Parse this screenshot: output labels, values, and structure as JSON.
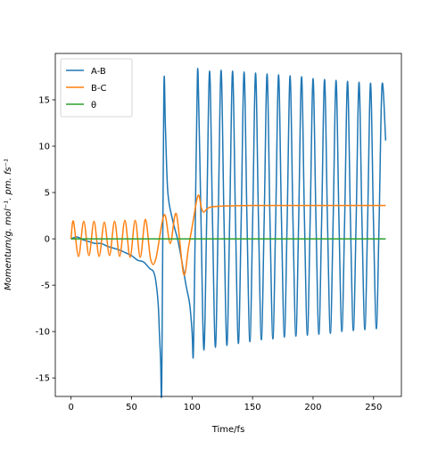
{
  "chart_data": {
    "type": "line",
    "xlabel": "Time/fs",
    "ylabel": "Momentum/g. mol⁻¹. pm. fs⁻¹",
    "xlim": [
      -13,
      273
    ],
    "ylim": [
      -17,
      20
    ],
    "xticks": [
      0,
      50,
      100,
      150,
      200,
      250
    ],
    "yticks": [
      -15,
      -10,
      -5,
      0,
      5,
      10,
      15
    ],
    "legend": "upper left",
    "series": [
      {
        "name": "A-B",
        "color": "#1f77b4",
        "x": [
          0,
          5,
          10,
          15,
          20,
          25,
          30,
          35,
          40,
          45,
          50,
          55,
          60,
          65,
          68,
          70,
          72,
          73,
          74,
          75,
          76.7,
          78,
          80,
          84,
          88,
          91,
          95,
          98,
          100,
          101,
          102,
          103,
          104,
          105,
          107.4,
          109.8,
          112.1,
          114.5,
          116.9,
          119.3,
          121.6,
          124,
          126.4,
          128.8,
          131.1,
          133.5,
          135.9,
          138.3,
          140.6,
          143,
          145.4,
          147.8,
          150.1,
          152.5,
          154.9,
          157.3,
          159.6,
          162,
          164.4,
          166.8,
          169.1,
          171.5,
          173.9,
          176.3,
          178.6,
          181,
          183.4,
          185.8,
          188.1,
          190.5,
          192.9,
          195.3,
          197.6,
          200,
          202.4,
          204.8,
          207.1,
          209.5,
          211.9,
          214.3,
          216.6,
          219,
          221.4,
          223.8,
          226.1,
          228.5,
          230.9,
          233.3,
          235.6,
          238,
          240.4,
          242.8,
          245.1,
          247.5,
          249.9,
          252.3,
          254.6,
          257,
          260
        ],
        "values": [
          0,
          0.2,
          -0.1,
          -0.3,
          -0.5,
          -0.5,
          -0.8,
          -1.0,
          -1.2,
          -1.5,
          -1.8,
          -2.3,
          -2.5,
          -3.2,
          -3.5,
          -4.5,
          -7,
          -10,
          -13,
          -15.3,
          16,
          12,
          5,
          2,
          0,
          -2,
          -5,
          -7,
          -10,
          -12.7,
          -5,
          5,
          14,
          17.8,
          2,
          -12,
          2,
          18.1,
          2,
          -11.7,
          2,
          18.2,
          2,
          -11.5,
          2,
          18.1,
          2,
          -11.3,
          2,
          18.0,
          2,
          -11.1,
          2,
          17.9,
          2,
          -10.9,
          2,
          17.8,
          2,
          -10.8,
          2,
          17.7,
          2,
          -10.6,
          2,
          17.6,
          2,
          -10.5,
          2,
          17.5,
          2,
          -10.4,
          2,
          17.3,
          2,
          -10.3,
          2,
          17.2,
          2,
          -10.2,
          2,
          17.1,
          2,
          -10.0,
          2,
          17.0,
          2,
          -9.9,
          2,
          16.9,
          2,
          -9.8,
          2,
          16.8,
          2,
          -9.7,
          2,
          16.6,
          10.6
        ]
      },
      {
        "name": "B-C",
        "color": "#ff7f0e",
        "x": [
          0,
          2,
          6.2,
          10.5,
          14.8,
          19,
          23.2,
          27.5,
          31.8,
          36,
          40.2,
          44.5,
          48.8,
          53,
          57.2,
          61.5,
          65.8,
          70,
          77,
          82,
          87,
          93,
          97,
          101,
          105,
          108,
          110,
          113,
          120,
          150,
          200,
          260
        ],
        "values": [
          0,
          1.9,
          -1.9,
          1.9,
          -1.8,
          1.9,
          -1.9,
          1.8,
          -1.8,
          1.9,
          -1.9,
          2.0,
          -2.0,
          2.0,
          -2.0,
          2.1,
          -2.2,
          -2.2,
          2.6,
          -0.5,
          2.7,
          -3.8,
          -1,
          2,
          4.7,
          3.2,
          2.9,
          3.3,
          3.5,
          3.6,
          3.6,
          3.6
        ]
      },
      {
        "name": "θ",
        "color": "#2ca02c",
        "x": [
          0,
          260
        ],
        "values": [
          0,
          0
        ]
      }
    ]
  }
}
